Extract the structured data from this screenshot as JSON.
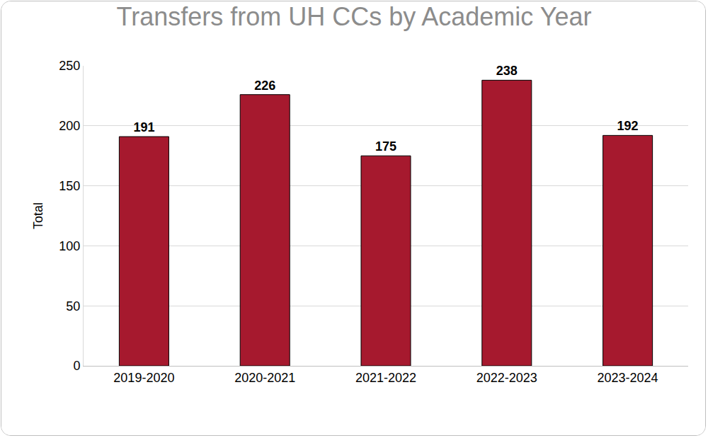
{
  "chart_data": {
    "type": "bar",
    "title": "Transfers from UH CCs by Academic Year",
    "y_label": "Total",
    "categories": [
      "2019-2020",
      "2020-2021",
      "2021-2022",
      "2022-2023",
      "2023-2024"
    ],
    "values": [
      191,
      226,
      175,
      238,
      192
    ],
    "color": "#a6192e",
    "ylim": [
      0,
      250
    ],
    "yticks": [
      0,
      50,
      100,
      150,
      200,
      250
    ],
    "grid": true,
    "data_labels": true
  }
}
